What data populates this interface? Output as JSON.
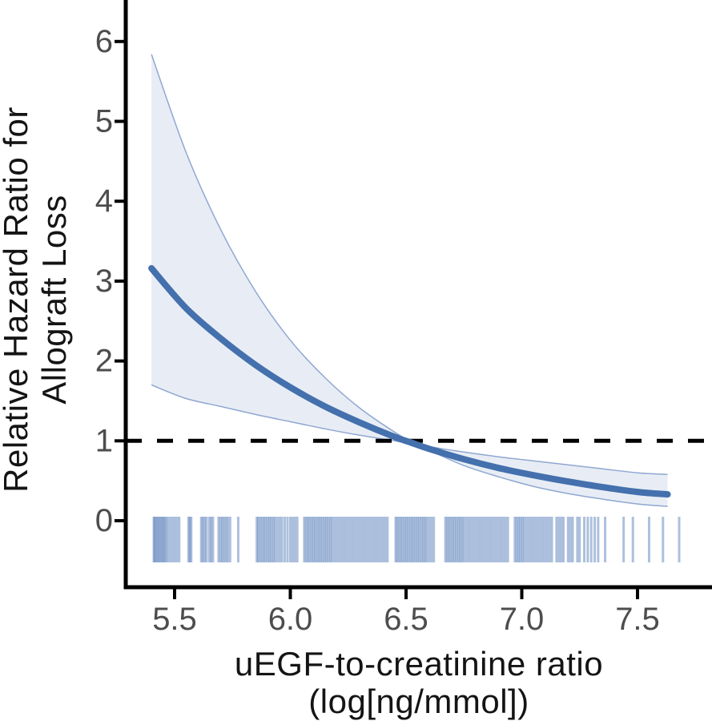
{
  "chart_data": {
    "type": "line",
    "title": "",
    "xlabel_line1": "uEGF-to-creatinine ratio",
    "xlabel_line2": "(log[ng/mmol])",
    "ylabel_line1": "Relative Hazard Ratio for",
    "ylabel_line2": "Allograft Loss",
    "x_tick_values": [
      5.5,
      6.0,
      6.5,
      7.0,
      7.5
    ],
    "x_tick_labels": [
      "5.5",
      "6.0",
      "6.5",
      "7.0",
      "7.5"
    ],
    "y_tick_values": [
      0,
      1,
      2,
      3,
      4,
      5,
      6
    ],
    "y_tick_labels": [
      "0",
      "1",
      "2",
      "3",
      "4",
      "5",
      "6"
    ],
    "xlim": [
      5.29,
      7.82
    ],
    "ylim": [
      -0.83,
      6.52
    ],
    "reference_line_y": 1,
    "legend": "none",
    "grid": false,
    "series": [
      {
        "name": "hazard-ratio-estimate",
        "x": [
          5.4,
          5.55,
          5.7,
          5.85,
          6.0,
          6.15,
          6.3,
          6.45,
          6.52,
          6.6,
          6.75,
          6.9,
          7.05,
          7.2,
          7.35,
          7.5,
          7.63
        ],
        "y": [
          3.16,
          2.66,
          2.28,
          1.95,
          1.67,
          1.43,
          1.23,
          1.05,
          0.98,
          0.9,
          0.77,
          0.66,
          0.57,
          0.49,
          0.42,
          0.36,
          0.33
        ]
      },
      {
        "name": "ci-upper",
        "x": [
          5.4,
          5.55,
          5.7,
          5.85,
          6.0,
          6.15,
          6.3,
          6.45,
          6.52,
          6.6,
          6.75,
          6.9,
          7.05,
          7.2,
          7.35,
          7.5,
          7.63
        ],
        "y": [
          5.84,
          4.61,
          3.64,
          2.87,
          2.26,
          1.79,
          1.41,
          1.11,
          1.0,
          0.93,
          0.86,
          0.8,
          0.75,
          0.7,
          0.65,
          0.6,
          0.58
        ]
      },
      {
        "name": "ci-lower",
        "x": [
          5.4,
          5.55,
          5.7,
          5.85,
          6.0,
          6.15,
          6.3,
          6.45,
          6.52,
          6.6,
          6.75,
          6.9,
          7.05,
          7.2,
          7.35,
          7.5,
          7.63
        ],
        "y": [
          1.7,
          1.53,
          1.43,
          1.33,
          1.24,
          1.15,
          1.07,
          1.0,
          0.96,
          0.88,
          0.69,
          0.55,
          0.43,
          0.34,
          0.27,
          0.21,
          0.18
        ]
      }
    ],
    "rug_x": [
      5.41,
      5.414,
      5.42,
      5.426,
      5.432,
      5.438,
      5.444,
      5.45,
      5.456,
      5.462,
      5.47,
      5.48,
      5.49,
      5.5,
      5.51,
      5.52,
      5.56,
      5.566,
      5.572,
      5.615,
      5.622,
      5.63,
      5.638,
      5.65,
      5.658,
      5.666,
      5.69,
      5.698,
      5.706,
      5.714,
      5.722,
      5.73,
      5.74,
      5.775,
      5.855,
      5.862,
      5.87,
      5.878,
      5.886,
      5.894,
      5.902,
      5.91,
      5.918,
      5.926,
      5.934,
      5.944,
      5.954,
      5.964,
      5.976,
      5.988,
      6.0,
      6.01,
      6.02,
      6.03,
      6.06,
      6.068,
      6.076,
      6.084,
      6.092,
      6.1,
      6.108,
      6.116,
      6.124,
      6.132,
      6.14,
      6.148,
      6.156,
      6.164,
      6.172,
      6.18,
      6.19,
      6.2,
      6.21,
      6.22,
      6.23,
      6.24,
      6.25,
      6.26,
      6.27,
      6.28,
      6.29,
      6.3,
      6.31,
      6.32,
      6.33,
      6.34,
      6.35,
      6.36,
      6.37,
      6.38,
      6.39,
      6.4,
      6.41,
      6.42,
      6.455,
      6.462,
      6.47,
      6.478,
      6.486,
      6.494,
      6.502,
      6.51,
      6.518,
      6.526,
      6.534,
      6.542,
      6.55,
      6.558,
      6.566,
      6.574,
      6.582,
      6.59,
      6.6,
      6.61,
      6.62,
      6.67,
      6.678,
      6.686,
      6.694,
      6.702,
      6.71,
      6.718,
      6.726,
      6.734,
      6.742,
      6.75,
      6.76,
      6.77,
      6.78,
      6.79,
      6.8,
      6.81,
      6.82,
      6.83,
      6.84,
      6.85,
      6.86,
      6.87,
      6.88,
      6.89,
      6.9,
      6.91,
      6.92,
      6.93,
      6.94,
      6.97,
      6.978,
      6.986,
      6.994,
      7.002,
      7.01,
      7.02,
      7.03,
      7.04,
      7.05,
      7.06,
      7.07,
      7.08,
      7.09,
      7.1,
      7.11,
      7.12,
      7.13,
      7.15,
      7.16,
      7.17,
      7.18,
      7.2,
      7.21,
      7.22,
      7.24,
      7.25,
      7.27,
      7.285,
      7.3,
      7.315,
      7.33,
      7.36,
      7.44,
      7.48,
      7.55,
      7.61,
      7.68
    ],
    "colors": {
      "curve": "#4470ad",
      "band_fill": "#e8edf5",
      "band_edge": "#8fa7d1",
      "rug": "#4a74b4",
      "reference_line": "#000000",
      "axis": "#000000",
      "tick_label": "#4d4d4d",
      "axis_title": "#141414"
    }
  }
}
